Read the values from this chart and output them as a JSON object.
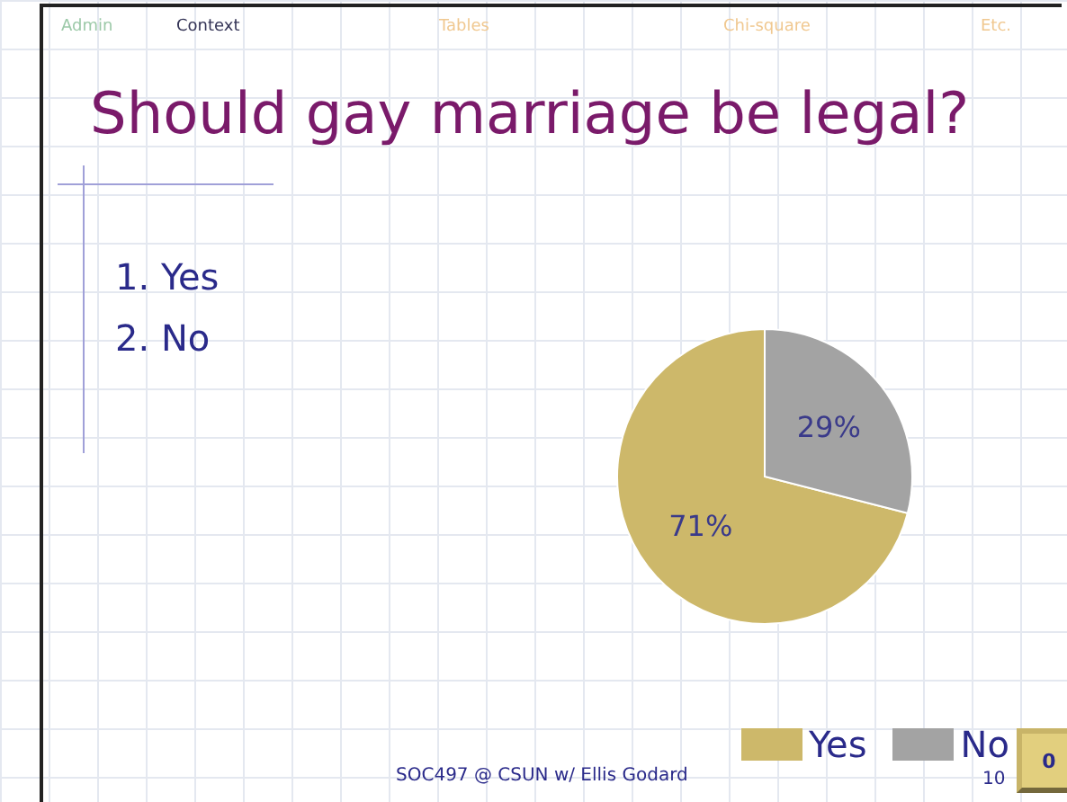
{
  "chart_data": {
    "type": "pie",
    "title": "Should gay marriage be legal?",
    "categories": [
      "Yes",
      "No"
    ],
    "values": [
      71,
      29
    ],
    "value_labels": [
      "71%",
      "29%"
    ],
    "colors": [
      "#cdb86a",
      "#a3a3a3"
    ],
    "legend": "bottom right",
    "annotations": [
      "Admin",
      "Context",
      "Tables",
      "Chi-square",
      "Etc.",
      "1. Yes",
      "2. No",
      "SOC497 @ CSUN w/ Ellis Godard",
      "10",
      "0"
    ]
  }
}
